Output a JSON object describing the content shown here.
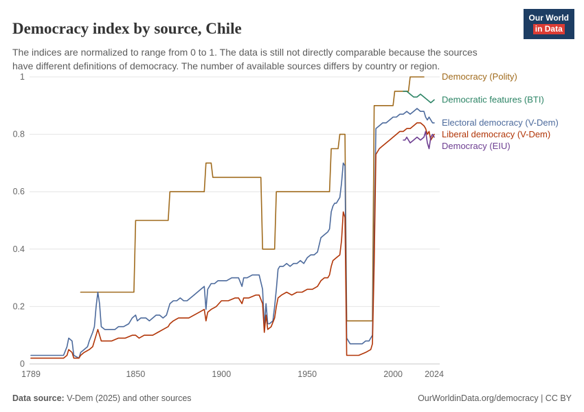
{
  "header": {
    "title": "Democracy index by source, Chile",
    "subtitle": "The indices are normalized to range from 0 to 1. The data is still not directly comparable because the sources have different definitions of democracy. The number of available sources differs by country or region.",
    "logo": {
      "line1": "Our World",
      "line2": "in Data",
      "bg_color": "#1d3d63",
      "accent_color": "#dc3c34"
    }
  },
  "footer": {
    "source_label": "Data source:",
    "source_text": " V-Dem (2025) and other sources",
    "right_text": "OurWorldinData.org/democracy | CC BY"
  },
  "chart_data": {
    "type": "line",
    "title": "Democracy index by source, Chile",
    "xlabel": "",
    "ylabel": "",
    "x_range": [
      1789,
      2024
    ],
    "y_range": [
      0,
      1
    ],
    "x_ticks": [
      1789,
      1850,
      1900,
      1950,
      2000,
      2024
    ],
    "y_ticks": [
      0,
      0.2,
      0.4,
      0.6,
      0.8,
      1
    ],
    "grid": "horizontal",
    "legend_position": "right-end-labels",
    "series": [
      {
        "name": "Democracy (Polity)",
        "color": "#a06b1d",
        "points": [
          [
            1818,
            0.25
          ],
          [
            1849,
            0.25
          ],
          [
            1850,
            0.5
          ],
          [
            1869,
            0.5
          ],
          [
            1870,
            0.6
          ],
          [
            1890,
            0.6
          ],
          [
            1891,
            0.7
          ],
          [
            1894,
            0.7
          ],
          [
            1895,
            0.65
          ],
          [
            1923,
            0.65
          ],
          [
            1924,
            0.4
          ],
          [
            1931,
            0.4
          ],
          [
            1932,
            0.6
          ],
          [
            1963,
            0.6
          ],
          [
            1964,
            0.75
          ],
          [
            1968,
            0.75
          ],
          [
            1969,
            0.8
          ],
          [
            1972,
            0.8
          ],
          [
            1973,
            0.15
          ],
          [
            1988,
            0.15
          ],
          [
            1989,
            0.9
          ],
          [
            2000,
            0.9
          ],
          [
            2001,
            0.95
          ],
          [
            2009,
            0.95
          ],
          [
            2010,
            1.0
          ],
          [
            2018,
            1.0
          ]
        ]
      },
      {
        "name": "Democratic features (BTI)",
        "color": "#2c8465",
        "points": [
          [
            2006,
            0.95
          ],
          [
            2008,
            0.95
          ],
          [
            2010,
            0.94
          ],
          [
            2012,
            0.93
          ],
          [
            2014,
            0.93
          ],
          [
            2016,
            0.94
          ],
          [
            2018,
            0.93
          ],
          [
            2020,
            0.92
          ],
          [
            2022,
            0.91
          ],
          [
            2024,
            0.92
          ]
        ]
      },
      {
        "name": "Electoral democracy (V-Dem)",
        "color": "#4c6a9c",
        "points": [
          [
            1789,
            0.03
          ],
          [
            1800,
            0.03
          ],
          [
            1808,
            0.03
          ],
          [
            1810,
            0.06
          ],
          [
            1811,
            0.09
          ],
          [
            1813,
            0.08
          ],
          [
            1814,
            0.03
          ],
          [
            1817,
            0.02
          ],
          [
            1818,
            0.04
          ],
          [
            1820,
            0.05
          ],
          [
            1822,
            0.06
          ],
          [
            1823,
            0.08
          ],
          [
            1825,
            0.11
          ],
          [
            1826,
            0.13
          ],
          [
            1827,
            0.2
          ],
          [
            1828,
            0.25
          ],
          [
            1829,
            0.21
          ],
          [
            1830,
            0.13
          ],
          [
            1832,
            0.12
          ],
          [
            1835,
            0.12
          ],
          [
            1838,
            0.12
          ],
          [
            1840,
            0.13
          ],
          [
            1843,
            0.13
          ],
          [
            1846,
            0.14
          ],
          [
            1848,
            0.16
          ],
          [
            1850,
            0.17
          ],
          [
            1851,
            0.15
          ],
          [
            1853,
            0.16
          ],
          [
            1856,
            0.16
          ],
          [
            1858,
            0.15
          ],
          [
            1860,
            0.16
          ],
          [
            1862,
            0.17
          ],
          [
            1864,
            0.17
          ],
          [
            1866,
            0.16
          ],
          [
            1868,
            0.17
          ],
          [
            1870,
            0.21
          ],
          [
            1872,
            0.22
          ],
          [
            1874,
            0.22
          ],
          [
            1876,
            0.23
          ],
          [
            1878,
            0.22
          ],
          [
            1880,
            0.22
          ],
          [
            1882,
            0.23
          ],
          [
            1884,
            0.24
          ],
          [
            1886,
            0.25
          ],
          [
            1888,
            0.26
          ],
          [
            1890,
            0.27
          ],
          [
            1891,
            0.19
          ],
          [
            1892,
            0.26
          ],
          [
            1894,
            0.28
          ],
          [
            1896,
            0.28
          ],
          [
            1898,
            0.29
          ],
          [
            1900,
            0.29
          ],
          [
            1903,
            0.29
          ],
          [
            1906,
            0.3
          ],
          [
            1909,
            0.3
          ],
          [
            1910,
            0.3
          ],
          [
            1912,
            0.27
          ],
          [
            1913,
            0.3
          ],
          [
            1915,
            0.3
          ],
          [
            1918,
            0.31
          ],
          [
            1920,
            0.31
          ],
          [
            1922,
            0.31
          ],
          [
            1924,
            0.26
          ],
          [
            1925,
            0.13
          ],
          [
            1926,
            0.21
          ],
          [
            1927,
            0.14
          ],
          [
            1928,
            0.14
          ],
          [
            1930,
            0.15
          ],
          [
            1931,
            0.2
          ],
          [
            1932,
            0.26
          ],
          [
            1933,
            0.33
          ],
          [
            1934,
            0.34
          ],
          [
            1936,
            0.34
          ],
          [
            1938,
            0.35
          ],
          [
            1940,
            0.34
          ],
          [
            1942,
            0.35
          ],
          [
            1944,
            0.35
          ],
          [
            1946,
            0.36
          ],
          [
            1948,
            0.35
          ],
          [
            1950,
            0.37
          ],
          [
            1952,
            0.38
          ],
          [
            1954,
            0.38
          ],
          [
            1956,
            0.39
          ],
          [
            1958,
            0.44
          ],
          [
            1960,
            0.45
          ],
          [
            1962,
            0.46
          ],
          [
            1963,
            0.47
          ],
          [
            1964,
            0.53
          ],
          [
            1965,
            0.55
          ],
          [
            1966,
            0.56
          ],
          [
            1967,
            0.56
          ],
          [
            1968,
            0.57
          ],
          [
            1969,
            0.58
          ],
          [
            1970,
            0.63
          ],
          [
            1971,
            0.7
          ],
          [
            1972,
            0.69
          ],
          [
            1973,
            0.09
          ],
          [
            1975,
            0.07
          ],
          [
            1978,
            0.07
          ],
          [
            1980,
            0.07
          ],
          [
            1982,
            0.07
          ],
          [
            1984,
            0.08
          ],
          [
            1986,
            0.08
          ],
          [
            1988,
            0.1
          ],
          [
            1989,
            0.45
          ],
          [
            1990,
            0.82
          ],
          [
            1992,
            0.83
          ],
          [
            1994,
            0.84
          ],
          [
            1996,
            0.84
          ],
          [
            1998,
            0.85
          ],
          [
            2000,
            0.86
          ],
          [
            2002,
            0.86
          ],
          [
            2004,
            0.87
          ],
          [
            2006,
            0.87
          ],
          [
            2008,
            0.88
          ],
          [
            2010,
            0.87
          ],
          [
            2012,
            0.88
          ],
          [
            2014,
            0.89
          ],
          [
            2016,
            0.88
          ],
          [
            2018,
            0.88
          ],
          [
            2019,
            0.86
          ],
          [
            2020,
            0.85
          ],
          [
            2021,
            0.86
          ],
          [
            2022,
            0.85
          ],
          [
            2023,
            0.84
          ],
          [
            2024,
            0.84
          ]
        ]
      },
      {
        "name": "Liberal democracy (V-Dem)",
        "color": "#b13507",
        "points": [
          [
            1789,
            0.02
          ],
          [
            1800,
            0.02
          ],
          [
            1808,
            0.02
          ],
          [
            1810,
            0.03
          ],
          [
            1811,
            0.05
          ],
          [
            1813,
            0.04
          ],
          [
            1814,
            0.02
          ],
          [
            1817,
            0.02
          ],
          [
            1818,
            0.03
          ],
          [
            1820,
            0.04
          ],
          [
            1823,
            0.05
          ],
          [
            1825,
            0.06
          ],
          [
            1827,
            0.1
          ],
          [
            1828,
            0.12
          ],
          [
            1829,
            0.1
          ],
          [
            1830,
            0.08
          ],
          [
            1833,
            0.08
          ],
          [
            1836,
            0.08
          ],
          [
            1840,
            0.09
          ],
          [
            1844,
            0.09
          ],
          [
            1848,
            0.1
          ],
          [
            1850,
            0.1
          ],
          [
            1852,
            0.09
          ],
          [
            1855,
            0.1
          ],
          [
            1858,
            0.1
          ],
          [
            1860,
            0.1
          ],
          [
            1863,
            0.11
          ],
          [
            1866,
            0.12
          ],
          [
            1869,
            0.13
          ],
          [
            1870,
            0.14
          ],
          [
            1872,
            0.15
          ],
          [
            1875,
            0.16
          ],
          [
            1878,
            0.16
          ],
          [
            1881,
            0.16
          ],
          [
            1884,
            0.17
          ],
          [
            1887,
            0.18
          ],
          [
            1890,
            0.19
          ],
          [
            1891,
            0.15
          ],
          [
            1892,
            0.18
          ],
          [
            1894,
            0.19
          ],
          [
            1897,
            0.2
          ],
          [
            1900,
            0.22
          ],
          [
            1904,
            0.22
          ],
          [
            1908,
            0.23
          ],
          [
            1910,
            0.23
          ],
          [
            1912,
            0.21
          ],
          [
            1913,
            0.23
          ],
          [
            1916,
            0.23
          ],
          [
            1920,
            0.24
          ],
          [
            1922,
            0.24
          ],
          [
            1924,
            0.21
          ],
          [
            1925,
            0.11
          ],
          [
            1926,
            0.17
          ],
          [
            1927,
            0.12
          ],
          [
            1929,
            0.13
          ],
          [
            1931,
            0.16
          ],
          [
            1932,
            0.2
          ],
          [
            1933,
            0.23
          ],
          [
            1935,
            0.24
          ],
          [
            1938,
            0.25
          ],
          [
            1941,
            0.24
          ],
          [
            1944,
            0.25
          ],
          [
            1947,
            0.25
          ],
          [
            1950,
            0.26
          ],
          [
            1953,
            0.26
          ],
          [
            1956,
            0.27
          ],
          [
            1958,
            0.29
          ],
          [
            1960,
            0.3
          ],
          [
            1962,
            0.3
          ],
          [
            1963,
            0.31
          ],
          [
            1964,
            0.34
          ],
          [
            1965,
            0.36
          ],
          [
            1967,
            0.37
          ],
          [
            1969,
            0.38
          ],
          [
            1970,
            0.43
          ],
          [
            1971,
            0.53
          ],
          [
            1972,
            0.51
          ],
          [
            1973,
            0.03
          ],
          [
            1976,
            0.03
          ],
          [
            1980,
            0.03
          ],
          [
            1984,
            0.04
          ],
          [
            1987,
            0.05
          ],
          [
            1988,
            0.07
          ],
          [
            1989,
            0.35
          ],
          [
            1990,
            0.73
          ],
          [
            1992,
            0.75
          ],
          [
            1994,
            0.76
          ],
          [
            1996,
            0.77
          ],
          [
            1998,
            0.78
          ],
          [
            2000,
            0.79
          ],
          [
            2002,
            0.8
          ],
          [
            2004,
            0.81
          ],
          [
            2006,
            0.81
          ],
          [
            2008,
            0.82
          ],
          [
            2010,
            0.82
          ],
          [
            2012,
            0.83
          ],
          [
            2014,
            0.84
          ],
          [
            2016,
            0.84
          ],
          [
            2018,
            0.83
          ],
          [
            2019,
            0.82
          ],
          [
            2020,
            0.8
          ],
          [
            2021,
            0.81
          ],
          [
            2022,
            0.78
          ],
          [
            2023,
            0.79
          ],
          [
            2024,
            0.8
          ]
        ]
      },
      {
        "name": "Democracy (EIU)",
        "color": "#6d3e91",
        "points": [
          [
            2006,
            0.78
          ],
          [
            2007,
            0.78
          ],
          [
            2008,
            0.79
          ],
          [
            2010,
            0.77
          ],
          [
            2012,
            0.78
          ],
          [
            2014,
            0.79
          ],
          [
            2016,
            0.78
          ],
          [
            2018,
            0.79
          ],
          [
            2019,
            0.81
          ],
          [
            2020,
            0.77
          ],
          [
            2021,
            0.75
          ],
          [
            2022,
            0.79
          ],
          [
            2023,
            0.8
          ],
          [
            2024,
            0.79
          ]
        ]
      }
    ]
  }
}
